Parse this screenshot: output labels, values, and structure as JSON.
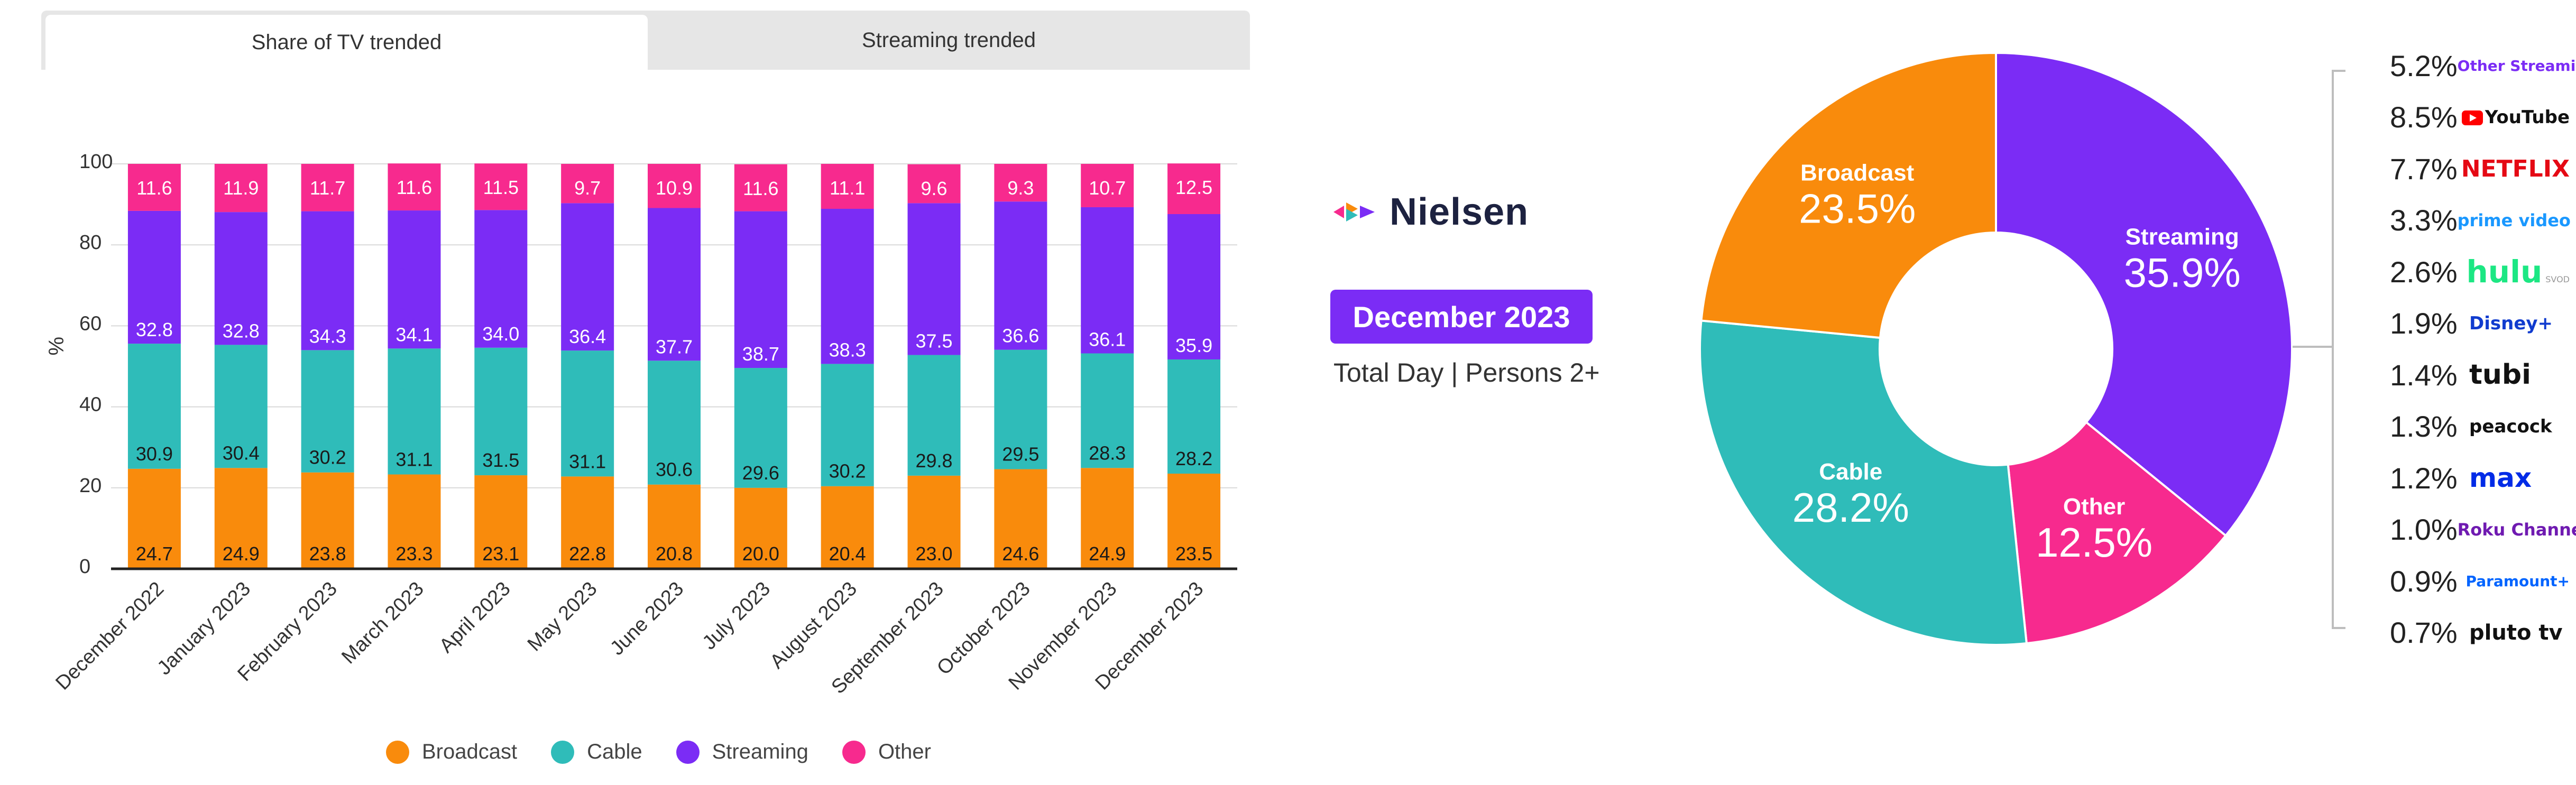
{
  "tabs": [
    {
      "label": "Share of TV trended",
      "active": true
    },
    {
      "label": "Streaming trended",
      "active": false
    }
  ],
  "colors": {
    "broadcast": "#f98b0c",
    "cable": "#2fbcb9",
    "streaming": "#7b2cf5",
    "other": "#f72a8e"
  },
  "brand": {
    "name": "Nielsen",
    "icon": "nielsen-logo-icon"
  },
  "period": {
    "month": "December 2023",
    "subtitle": "Total Day | Persons 2+"
  },
  "legend": [
    "Broadcast",
    "Cable",
    "Streaming",
    "Other"
  ],
  "chart_data": [
    {
      "type": "bar",
      "stacked": true,
      "ylabel": "%",
      "ylim": [
        0,
        100
      ],
      "yticks": [
        "0",
        "20",
        "40",
        "60",
        "80",
        "100"
      ],
      "categories": [
        "December 2022",
        "January 2023",
        "February 2023",
        "March 2023",
        "April 2023",
        "May 2023",
        "June 2023",
        "July 2023",
        "August 2023",
        "September 2023",
        "October 2023",
        "November 2023",
        "December 2023"
      ],
      "series": [
        {
          "name": "Broadcast",
          "values": [
            24.7,
            24.9,
            23.8,
            23.3,
            23.1,
            22.8,
            20.8,
            20.0,
            20.4,
            23.0,
            24.6,
            24.9,
            23.5
          ]
        },
        {
          "name": "Cable",
          "values": [
            30.9,
            30.4,
            30.2,
            31.1,
            31.5,
            31.1,
            30.6,
            29.6,
            30.2,
            29.8,
            29.5,
            28.3,
            28.2
          ]
        },
        {
          "name": "Streaming",
          "values": [
            32.8,
            32.8,
            34.3,
            34.1,
            34.0,
            36.4,
            37.7,
            38.7,
            38.3,
            37.5,
            36.6,
            36.1,
            35.9
          ]
        },
        {
          "name": "Other",
          "values": [
            11.6,
            11.9,
            11.7,
            11.6,
            11.5,
            9.7,
            10.9,
            11.6,
            11.1,
            9.6,
            9.3,
            10.7,
            12.5
          ]
        }
      ],
      "grid": true,
      "legend_position": "bottom"
    },
    {
      "type": "pie",
      "donut": true,
      "slices": [
        {
          "name": "Streaming",
          "value": 35.9,
          "label": "35.9%"
        },
        {
          "name": "Other",
          "value": 12.5,
          "label": "12.5%"
        },
        {
          "name": "Cable",
          "value": 28.2,
          "label": "28.2%"
        },
        {
          "name": "Broadcast",
          "value": 23.5,
          "label": "23.5%"
        }
      ]
    },
    {
      "type": "table",
      "rows": [
        {
          "value": "5.2%",
          "logo": "Other Streaming"
        },
        {
          "value": "8.5%",
          "logo": "YouTube"
        },
        {
          "value": "7.7%",
          "logo": "NETFLIX"
        },
        {
          "value": "3.3%",
          "logo": "prime video"
        },
        {
          "value": "2.6%",
          "logo": "hulu",
          "sub": "SVOD"
        },
        {
          "value": "1.9%",
          "logo": "Disney+"
        },
        {
          "value": "1.4%",
          "logo": "tubi"
        },
        {
          "value": "1.3%",
          "logo": "peacock"
        },
        {
          "value": "1.2%",
          "logo": "max"
        },
        {
          "value": "1.0%",
          "logo": "Roku Channel"
        },
        {
          "value": "0.9%",
          "logo": "Paramount+"
        },
        {
          "value": "0.7%",
          "logo": "pluto tv"
        }
      ]
    }
  ]
}
